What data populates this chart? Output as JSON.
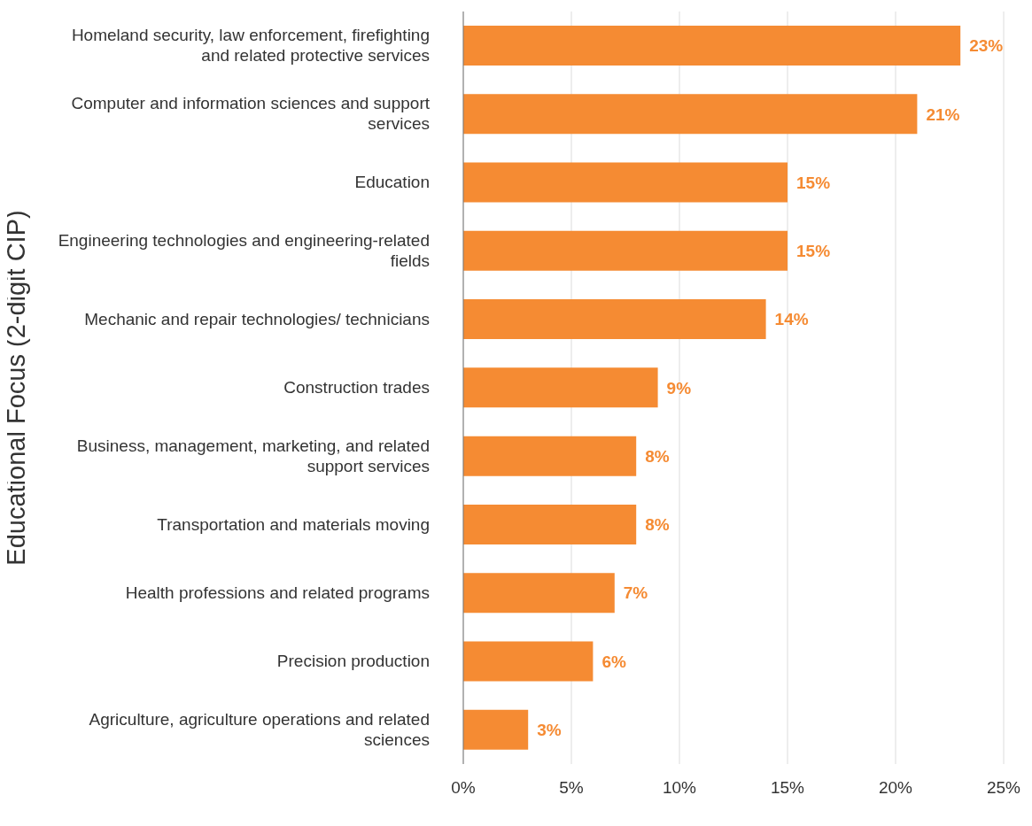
{
  "chart_data": {
    "type": "bar",
    "orientation": "horizontal",
    "ylabel": "Educational Focus (2-digit CIP)",
    "categories": [
      "Homeland security, law enforcement, firefighting and related protective services",
      "Computer and information sciences and support services",
      "Education",
      "Engineering technologies and engineering-related fields",
      "Mechanic and repair technologies/ technicians",
      "Construction trades",
      "Business, management, marketing, and related support services",
      "Transportation and materials moving",
      "Health professions and related programs",
      "Precision production",
      "Agriculture, agriculture operations and related sciences"
    ],
    "values": [
      23,
      21,
      15,
      15,
      14,
      9,
      8,
      8,
      7,
      6,
      3
    ],
    "value_labels": [
      "23%",
      "21%",
      "15%",
      "15%",
      "14%",
      "9%",
      "8%",
      "8%",
      "7%",
      "6%",
      "3%"
    ],
    "color": "#f58b33",
    "xlim": [
      0,
      25
    ],
    "xticks": [
      {
        "value": 0,
        "label": "0%"
      },
      {
        "value": 5,
        "label": "5%"
      },
      {
        "value": 10,
        "label": "10%"
      },
      {
        "value": 15,
        "label": "15%"
      },
      {
        "value": 20,
        "label": "20%"
      },
      {
        "value": 25,
        "label": "25%"
      }
    ],
    "grid": "x"
  }
}
